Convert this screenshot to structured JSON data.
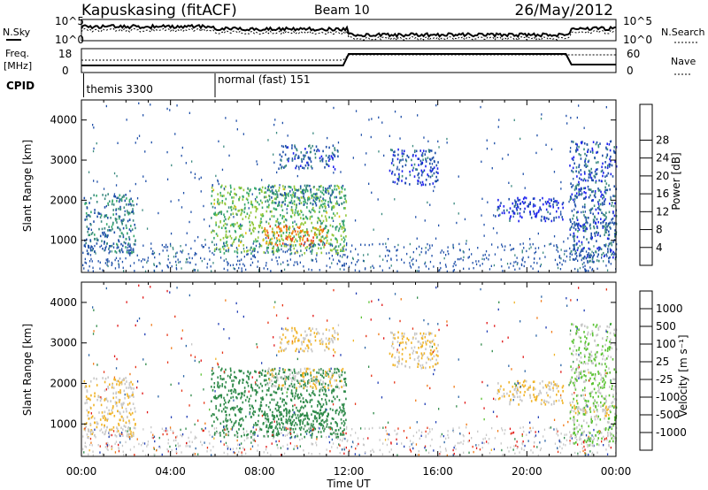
{
  "header": {
    "station": "Kapuskasing (fitACF)",
    "beam": "Beam 10",
    "date": "26/May/2012"
  },
  "noise_panel": {
    "left_label": "N.Sky",
    "right_label": "N.Search",
    "tick_top": "10^5",
    "tick_bottom": "10^0"
  },
  "freq_panel": {
    "left_label_line1": "Freq.",
    "left_label_line2": "[MHz]",
    "right_label": "Nave",
    "left_ticks": [
      "18",
      "8"
    ],
    "right_ticks": [
      "60",
      "0"
    ]
  },
  "cpid": {
    "label": "CPID",
    "segments": [
      {
        "name": "themis 3300",
        "start_hour": 0.1
      },
      {
        "name": "normal (fast) 151",
        "start_hour": 6.0
      }
    ]
  },
  "x_axis": {
    "title": "Time UT",
    "range_hours": [
      0,
      24
    ],
    "tick_labels": [
      "00:00",
      "04:00",
      "08:00",
      "12:00",
      "16:00",
      "20:00",
      "00:00"
    ]
  },
  "power_panel": {
    "ylabel": "Slant Range [km]",
    "ytick_labels": [
      "1000",
      "2000",
      "3000",
      "4000"
    ],
    "colorbar_label": "Power [dB]",
    "colorbar_ticks": [
      "4",
      "8",
      "12",
      "16",
      "20",
      "24",
      "28"
    ],
    "colors": [
      "#1e22ee",
      "#1f4fa8",
      "#3c8a80",
      "#35a86b",
      "#93c83a",
      "#e6c418",
      "#f08a10",
      "#e53a12",
      "#dd1f1f"
    ]
  },
  "velocity_panel": {
    "ylabel": "Slant Range [km]",
    "ytick_labels": [
      "1000",
      "2000",
      "3000",
      "4000"
    ],
    "colorbar_label": "Velocity [m s⁻¹]",
    "colorbar_ticks": [
      "1000",
      "500",
      "100",
      "25",
      "-25",
      "-100",
      "-500",
      "-1000"
    ],
    "colors": [
      "#1e3cb4",
      "#2a64a6",
      "#2f8a4a",
      "#5ac232",
      "#c8c8c8",
      "#f0b428",
      "#f07814",
      "#e63214",
      "#e01414"
    ]
  },
  "chart_data": {
    "type": "heatmap",
    "title": "Kapuskasing (fitACF)  Beam 10  26/May/2012",
    "xlabel": "Time UT",
    "ylabel": "Slant Range [km]",
    "x_range_hours": [
      0,
      24
    ],
    "y_range_km": [
      200,
      4500
    ],
    "panels": [
      "Power [dB]",
      "Velocity [m s-1]"
    ],
    "regions": [
      {
        "t": [
          0.1,
          2.4
        ],
        "r": [
          700,
          2200
        ],
        "power_db": 8,
        "velocity": -25
      },
      {
        "t": [
          5.8,
          11.9
        ],
        "r": [
          700,
          2400
        ],
        "power_db": 14,
        "velocity": 100
      },
      {
        "t": [
          8.2,
          11.0
        ],
        "r": [
          900,
          1400
        ],
        "power_db": 24,
        "velocity": 100
      },
      {
        "t": [
          8.3,
          11.8
        ],
        "r": [
          1900,
          2400
        ],
        "power_db": 8,
        "velocity": -25
      },
      {
        "t": [
          8.8,
          11.5
        ],
        "r": [
          2800,
          3400
        ],
        "power_db": 6,
        "velocity": -25
      },
      {
        "t": [
          13.8,
          16.0
        ],
        "r": [
          2400,
          3300
        ],
        "power_db": 5,
        "velocity": -25
      },
      {
        "t": [
          18.5,
          21.6
        ],
        "r": [
          1500,
          2100
        ],
        "power_db": 4,
        "velocity": -25
      },
      {
        "t": [
          21.9,
          24.0
        ],
        "r": [
          1200,
          1500
        ],
        "power_db": 8,
        "velocity": -25
      },
      {
        "t": [
          21.9,
          24.0
        ],
        "r": [
          500,
          3500
        ],
        "power_db": 6,
        "velocity": 25
      }
    ]
  }
}
